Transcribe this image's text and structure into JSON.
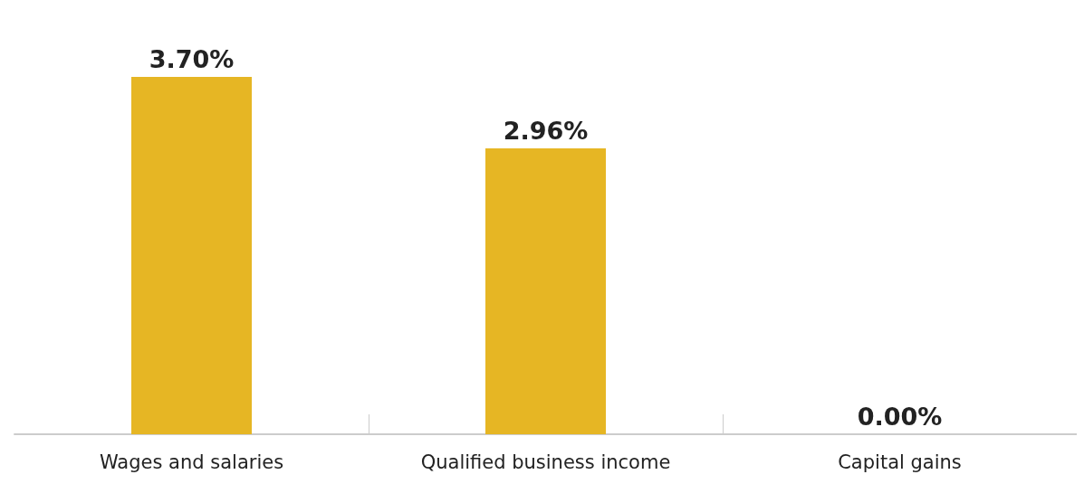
{
  "chart_data": {
    "type": "bar",
    "categories": [
      "Wages and salaries",
      "Qualified business income",
      "Capital gains"
    ],
    "values": [
      3.7,
      2.96,
      0
    ],
    "value_labels": [
      "3.70%",
      "2.96%",
      "0.00%"
    ],
    "color": "#e6b624"
  }
}
